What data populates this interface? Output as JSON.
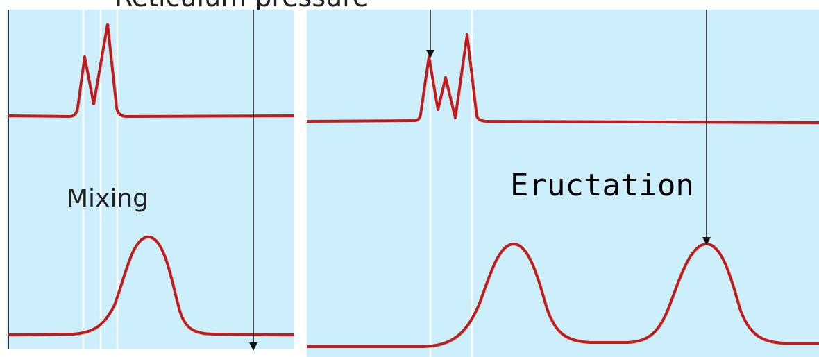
{
  "top_title": "Reticulum pressure",
  "colors": {
    "panel_bg": "#cdeffb",
    "trace": "#c41a1a",
    "marker_line": "#ffffff",
    "arrow": "#111111",
    "text": "#222222"
  },
  "left_panel": {
    "label": "Mixing"
  },
  "right_panel": {
    "label": "Eructation"
  }
}
